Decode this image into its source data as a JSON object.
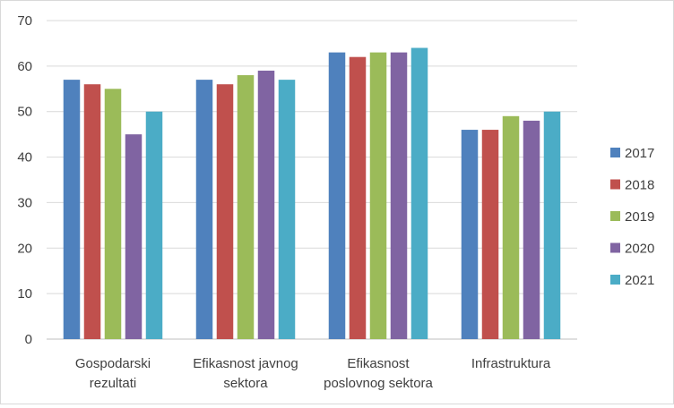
{
  "chart_data": {
    "type": "bar",
    "title": "",
    "xlabel": "",
    "ylabel": "",
    "ylim": [
      0,
      70
    ],
    "yticks": [
      "0",
      "10",
      "20",
      "30",
      "40",
      "50",
      "60",
      "70"
    ],
    "grid": true,
    "legend_position": "right",
    "categories": [
      [
        "Gospodarski",
        "rezultati"
      ],
      [
        "Efikasnost javnog",
        "sektora"
      ],
      [
        "Efikasnost",
        "poslovnog sektora"
      ],
      [
        "Infrastruktura"
      ]
    ],
    "series": [
      {
        "name": "2017",
        "color": "#4f81bd",
        "values": [
          57,
          57,
          63,
          46
        ]
      },
      {
        "name": "2018",
        "color": "#c0504d",
        "values": [
          56,
          56,
          62,
          46
        ]
      },
      {
        "name": "2019",
        "color": "#9bbb59",
        "values": [
          55,
          58,
          63,
          49
        ]
      },
      {
        "name": "2020",
        "color": "#8064a2",
        "values": [
          45,
          59,
          63,
          48
        ]
      },
      {
        "name": "2021",
        "color": "#4bacc6",
        "values": [
          50,
          57,
          64,
          50
        ]
      }
    ]
  }
}
